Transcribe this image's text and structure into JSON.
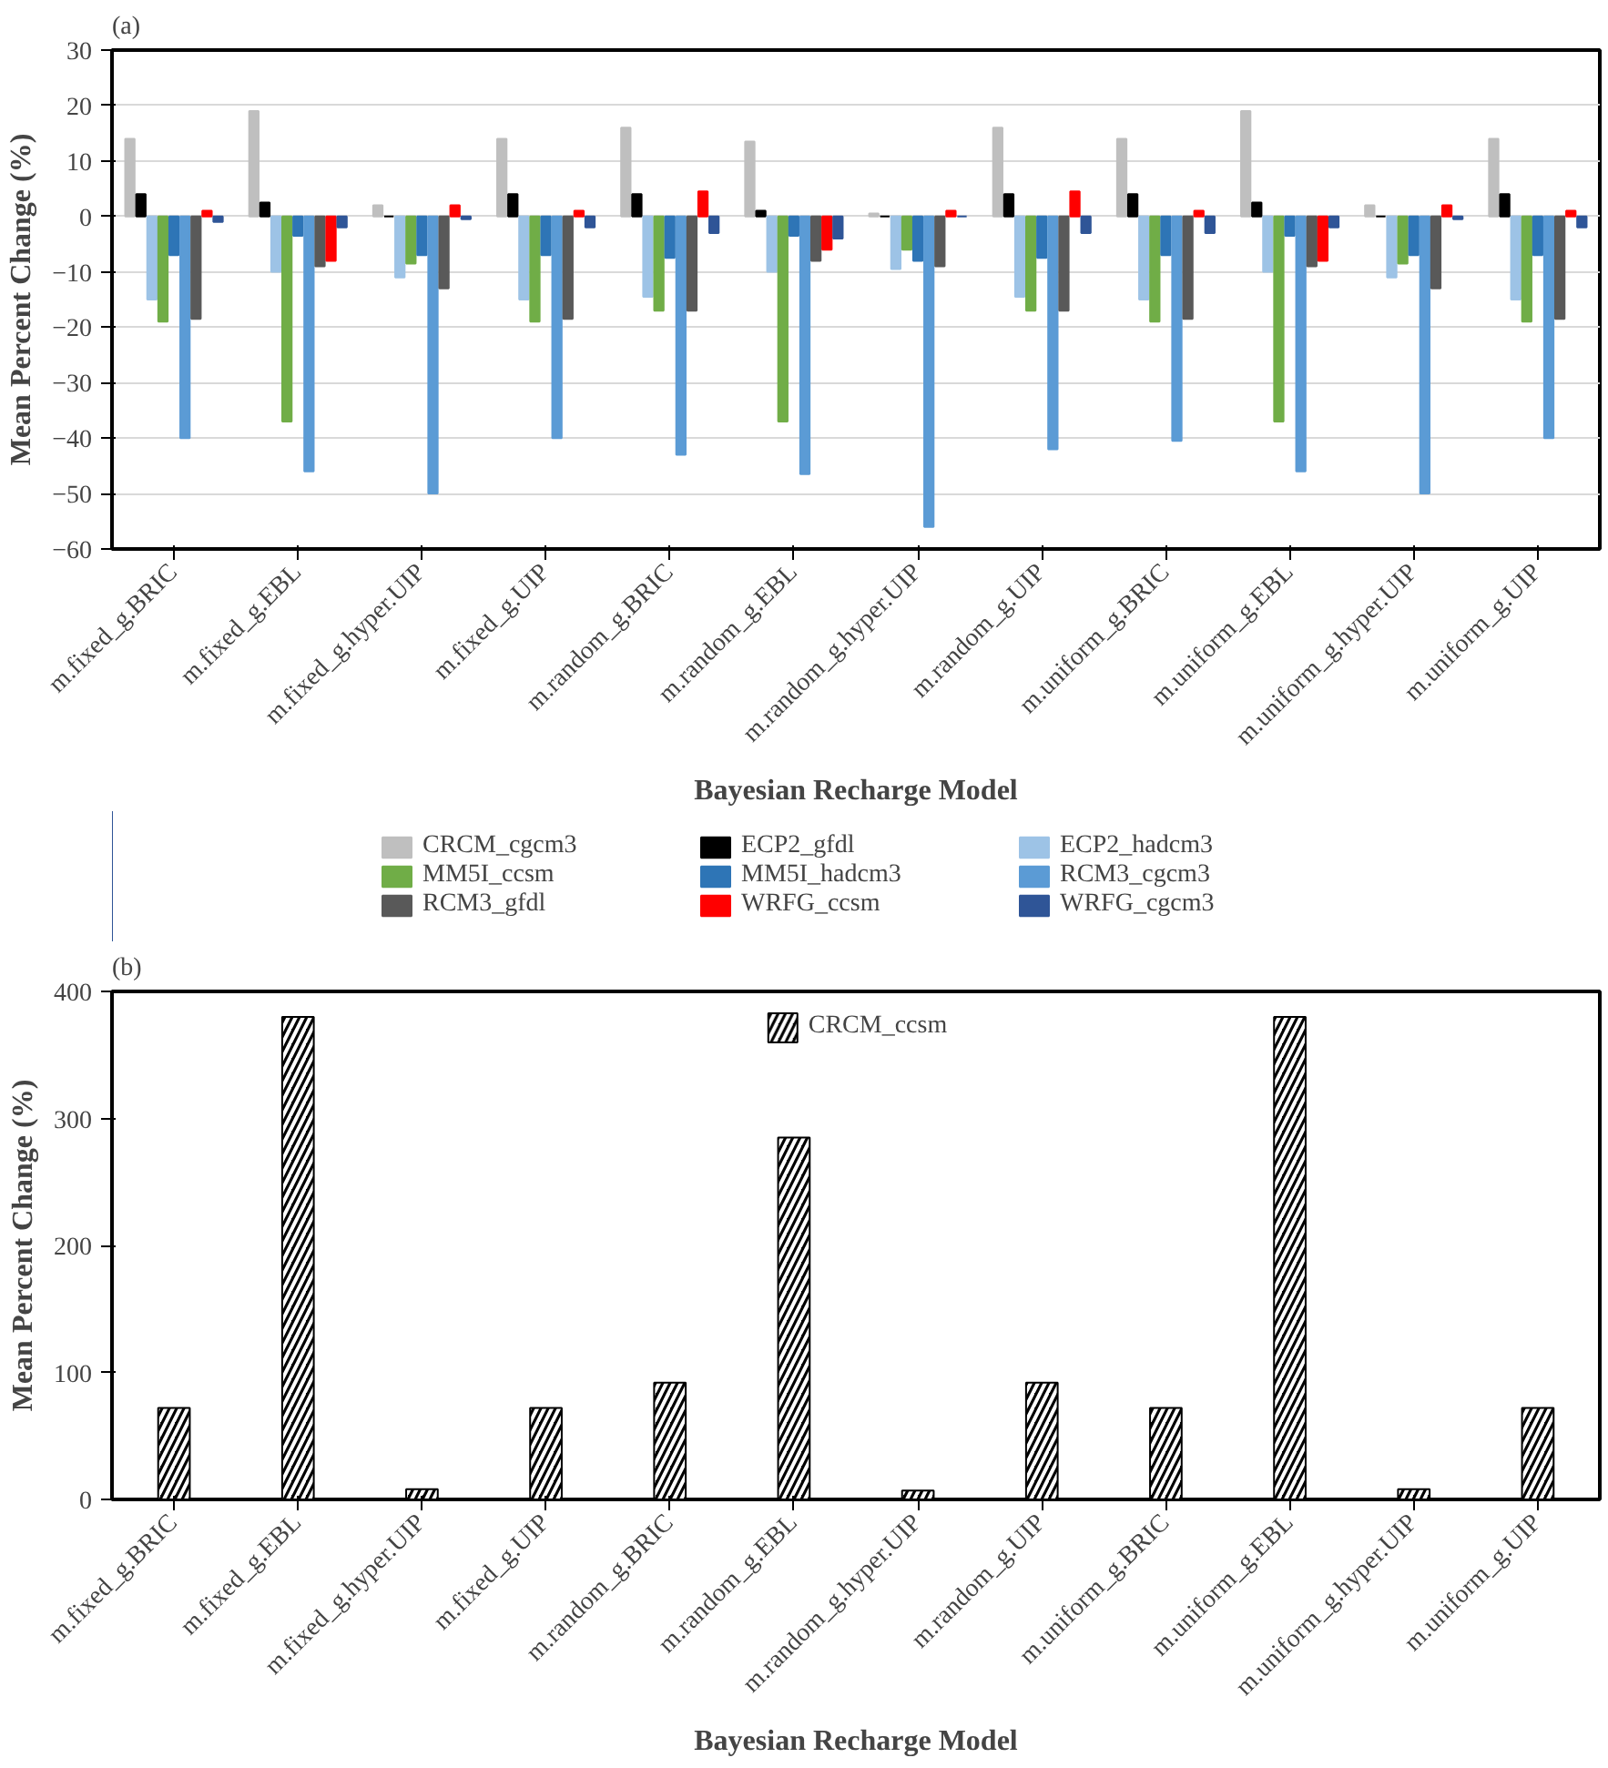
{
  "chart_data": [
    {
      "type": "bar",
      "title": "(a)",
      "xlabel": "Bayesian Recharge Model",
      "ylabel": "Mean Percent Change (%)",
      "categories": [
        "m.fixed_g.BRIC",
        "m.fixed_g.EBL",
        "m.fixed_g.hyper.UIP",
        "m.fixed_g.UIP",
        "m.random_g.BRIC",
        "m.random_g.EBL",
        "m.random_g.hyper.UIP",
        "m.random_g.UIP",
        "m.uniform_g.BRIC",
        "m.uniform_g.EBL",
        "m.uniform_g.hyper.UIP",
        "m.uniform_g.UIP"
      ],
      "series": [
        {
          "name": "CRCM_cgcm3",
          "color": "#bfbfbf",
          "values": [
            14,
            19,
            2,
            14,
            16,
            13.5,
            0.5,
            16,
            14,
            19,
            2,
            14
          ]
        },
        {
          "name": "ECP2_gfdl",
          "color": "#000000",
          "values": [
            4,
            2.5,
            0,
            4,
            4,
            1,
            0,
            4,
            4,
            2.5,
            0,
            4
          ]
        },
        {
          "name": "ECP2_hadcm3",
          "color": "#9dc3e6",
          "values": [
            -15,
            -10,
            -11,
            -15,
            -14.5,
            -10,
            -9.5,
            -14.5,
            -15,
            -10,
            -11,
            -15
          ]
        },
        {
          "name": "MM5I_ccsm",
          "color": "#70ad47",
          "values": [
            -19,
            -37,
            -8.5,
            -19,
            -17,
            -37,
            -6,
            -17,
            -19,
            -37,
            -8.5,
            -19
          ]
        },
        {
          "name": "MM5I_hadcm3",
          "color": "#2e75b6",
          "values": [
            -7,
            -3.5,
            -7,
            -7,
            -7.5,
            -3.5,
            -8,
            -7.5,
            -7,
            -3.5,
            -7,
            -7
          ]
        },
        {
          "name": "RCM3_cgcm3",
          "color": "#5b9bd5",
          "values": [
            -40,
            -46,
            -50,
            -40,
            -43,
            -46.5,
            -56,
            -42,
            -40.5,
            -46,
            -50,
            -40
          ]
        },
        {
          "name": "RCM3_gfdl",
          "color": "#595959",
          "values": [
            -18.5,
            -9,
            -13,
            -18.5,
            -17,
            -8,
            -9,
            -17,
            -18.5,
            -9,
            -13,
            -18.5
          ]
        },
        {
          "name": "WRFG_ccsm",
          "color": "#ff0000",
          "values": [
            1,
            -8,
            2,
            1,
            4.5,
            -6,
            1,
            4.5,
            1,
            -8,
            2,
            1
          ]
        },
        {
          "name": "WRFG_cgcm3",
          "color": "#2f5597",
          "values": [
            -1,
            -2,
            -0.5,
            -2,
            -3,
            -4,
            0,
            -3,
            -3,
            -2,
            -0.5,
            -2
          ]
        }
      ],
      "ylim": [
        -60,
        30
      ],
      "yticks": [
        -60,
        -50,
        -40,
        -30,
        -20,
        -10,
        0,
        10,
        20,
        30
      ],
      "grid": "y",
      "legend": "bottom"
    },
    {
      "type": "bar",
      "title": "(b)",
      "xlabel": "Bayesian Recharge Model",
      "ylabel": "Mean Percent Change (%)",
      "categories": [
        "m.fixed_g.BRIC",
        "m.fixed_g.EBL",
        "m.fixed_g.hyper.UIP",
        "m.fixed_g.UIP",
        "m.random_g.BRIC",
        "m.random_g.EBL",
        "m.random_g.hyper.UIP",
        "m.random_g.UIP",
        "m.uniform_g.BRIC",
        "m.uniform_g.EBL",
        "m.uniform_g.hyper.UIP",
        "m.uniform_g.UIP"
      ],
      "series": [
        {
          "name": "CRCM_ccsm",
          "color": "#000000",
          "values": [
            72,
            380,
            8,
            72,
            92,
            285,
            7,
            92,
            72,
            380,
            8,
            72
          ]
        }
      ],
      "ylim": [
        0,
        400
      ],
      "yticks": [
        0,
        100,
        200,
        300,
        400
      ],
      "grid": false,
      "legend": "top"
    }
  ]
}
